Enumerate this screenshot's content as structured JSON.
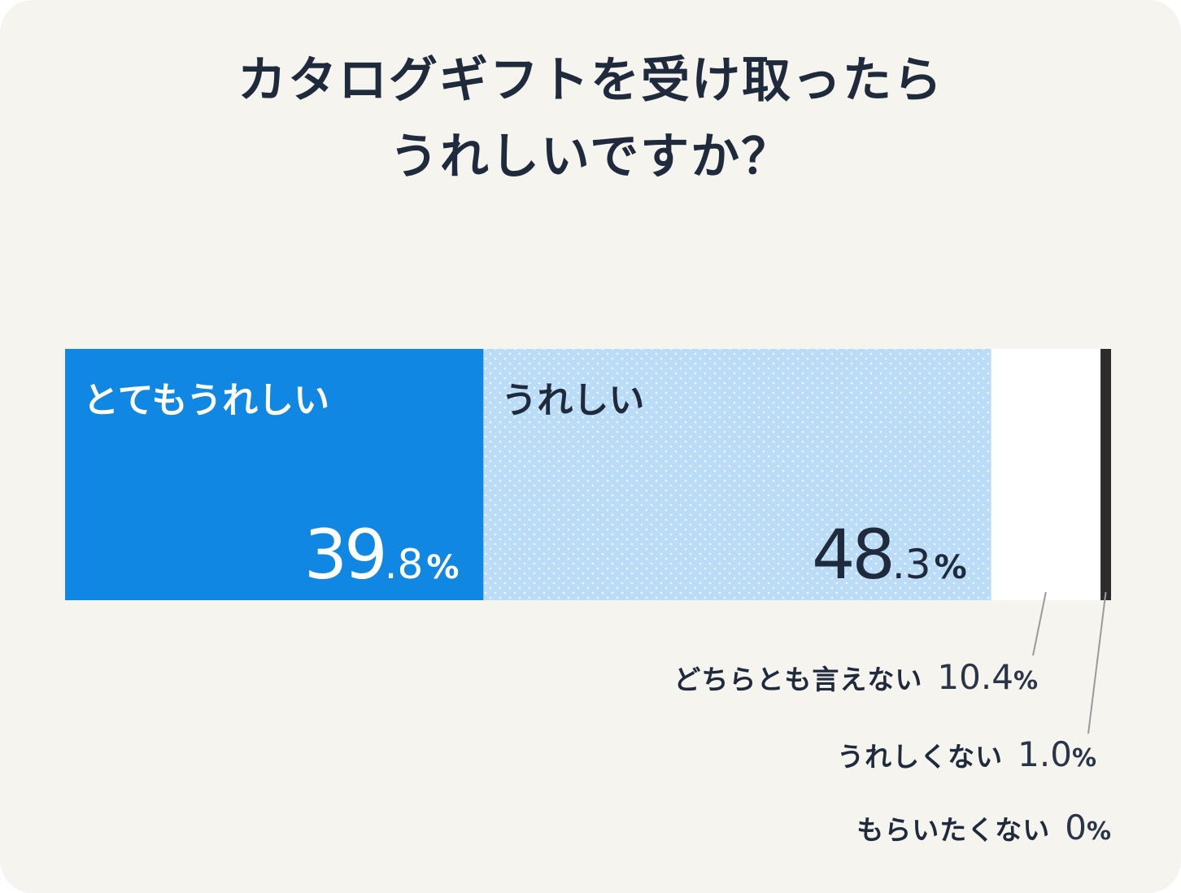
{
  "title_lines": [
    "カタログギフトを受け取ったら",
    "うれしいですか？"
  ],
  "colors": {
    "background": "#f6f4ef",
    "very_happy": "#1187e4",
    "happy": "#bbdcf7",
    "happy_dots": "#ffffff",
    "neutral": "#ffffff",
    "unhappy": "#2c2c2c",
    "leader_line": "#9a9a9a",
    "text_dark": "#1f2a3c"
  },
  "chart_data": {
    "type": "bar",
    "orientation": "horizontal-stacked-100",
    "title": "カタログギフトを受け取ったら うれしいですか？",
    "unit": "%",
    "categories": [
      "とてもうれしい",
      "うれしい",
      "どちらとも言えない",
      "うれしくない",
      "もらいたくない"
    ],
    "values": [
      39.8,
      48.3,
      10.4,
      1.0,
      0
    ],
    "value_labels": [
      {
        "int": "39",
        "dec": ".8",
        "pct": "%"
      },
      {
        "int": "48",
        "dec": ".3",
        "pct": "%"
      },
      {
        "int": "10.4",
        "dec": "",
        "pct": "%"
      },
      {
        "int": "1.0",
        "dec": "",
        "pct": "%"
      },
      {
        "int": "0",
        "dec": "",
        "pct": "%"
      }
    ],
    "label_placement": [
      "inside",
      "inside",
      "outside",
      "outside",
      "outside"
    ],
    "xlim": [
      0,
      100
    ],
    "grid": false,
    "legend": "none"
  }
}
